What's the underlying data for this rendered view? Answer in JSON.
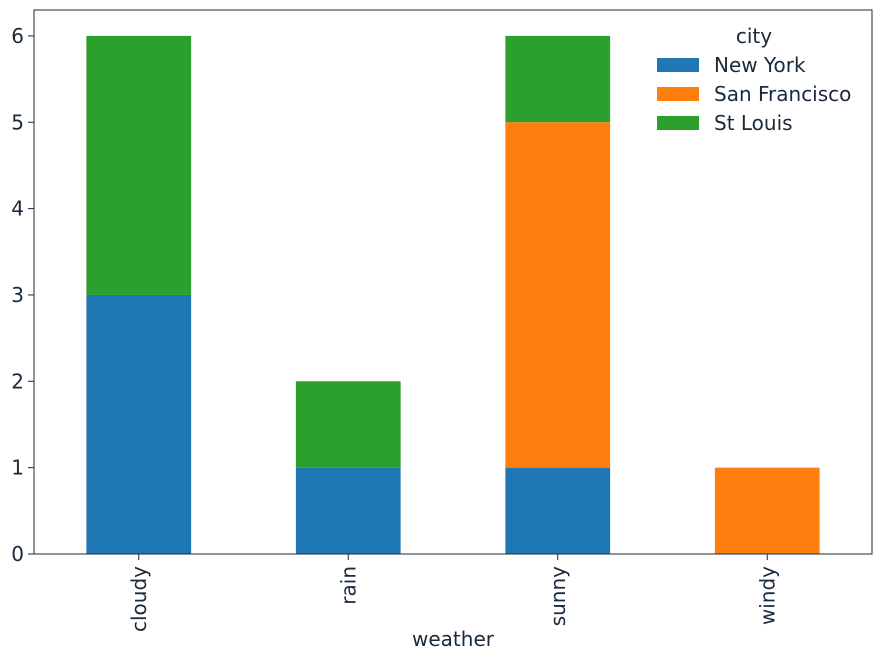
{
  "chart_data": {
    "type": "bar",
    "stacked": true,
    "categories": [
      "cloudy",
      "rain",
      "sunny",
      "windy"
    ],
    "series": [
      {
        "name": "New York",
        "values": [
          3,
          1,
          1,
          0
        ],
        "color": "#1f77b4"
      },
      {
        "name": "San Francisco",
        "values": [
          0,
          0,
          4,
          1
        ],
        "color": "#ff7f0e"
      },
      {
        "name": "St Louis",
        "values": [
          3,
          1,
          1,
          0
        ],
        "color": "#2ca02c"
      }
    ],
    "xlabel": "weather",
    "ylabel": "",
    "ylim": [
      0,
      6.3
    ],
    "yticks": [
      0,
      1,
      2,
      3,
      4,
      5,
      6
    ],
    "legend": {
      "title": "city",
      "placement": "top-right"
    },
    "grid": false
  }
}
